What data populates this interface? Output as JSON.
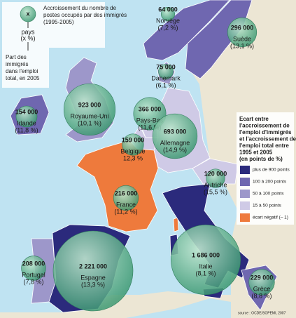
{
  "legend_top": {
    "symbol": "x",
    "title": [
      "Accroissement du nombre de",
      "postes occupés par des immigrés",
      "(1995-2005)"
    ],
    "country": "pays",
    "share": "(x %)",
    "note": [
      "Part des",
      "immigrés",
      "dans l'emploi",
      "total, en 2005"
    ]
  },
  "legend_right": {
    "title": [
      "Ecart entre",
      "l'accroissement de",
      "l'emploi d'immigrés",
      "et l'accroissement de",
      "l'emploi total entre",
      "1995 et 2005",
      "(en points de %)"
    ],
    "items": [
      {
        "label": "plus de 900 points",
        "color": "#2b2a7c"
      },
      {
        "label": "100 à 200 points",
        "color": "#6f67b0"
      },
      {
        "label": "50 à 100 points",
        "color": "#9d97ca"
      },
      {
        "label": "15 à 50 points",
        "color": "#cfcae6"
      },
      {
        "label": "écart négatif (– 1)",
        "color": "#ee7a3c"
      }
    ]
  },
  "countries": [
    {
      "name": "Norvège",
      "value": 64000,
      "label": "64 000",
      "share": "(7,2 %)",
      "color": "#6f67b0"
    },
    {
      "name": "Suède",
      "value": 296000,
      "label": "296 000",
      "share": "(13,1 %)",
      "color": "#6f67b0"
    },
    {
      "name": "Danemark",
      "value": 75000,
      "label": "75 000",
      "share": "(6,1 %)",
      "color": "#9d97ca"
    },
    {
      "name": "Irlande",
      "value": 154000,
      "label": "154 000",
      "share": "(11,8 %)",
      "color": "#6f67b0"
    },
    {
      "name": "Royaume-Uni",
      "value": 923000,
      "label": "923 000",
      "share": "(10,1 %)",
      "color": "#9d97ca"
    },
    {
      "name": "Pays-Bas",
      "value": 366000,
      "label": "366 000",
      "share": "(11,6 %)",
      "color": "#cfcae6"
    },
    {
      "name": "Belgique",
      "value": 159000,
      "label": "159 000",
      "share": "12,3 %",
      "color": "#cfcae6"
    },
    {
      "name": "Allemagne",
      "value": 693000,
      "label": "693 000",
      "share": "(14,9 %)",
      "color": "#cfcae6"
    },
    {
      "name": "France",
      "value": 216000,
      "label": "216 000",
      "share": "(11,2 %)",
      "color": "#ee7a3c"
    },
    {
      "name": "Autriche",
      "value": 120000,
      "label": "120 000",
      "share": "(15,5 %)",
      "color": "#cfcae6"
    },
    {
      "name": "Portugal",
      "value": 208000,
      "label": "208 000",
      "share": "(7,8 %)",
      "color": "#9d97ca"
    },
    {
      "name": "Espagne",
      "value": 2221000,
      "label": "2 221 000",
      "share": "(13,3 %)",
      "color": "#2b2a7c"
    },
    {
      "name": "Italie",
      "value": 1686000,
      "label": "1 686 000",
      "share": "(8,1 %)",
      "color": "#2b2a7c"
    },
    {
      "name": "Grèce",
      "value": 229000,
      "label": "229 000",
      "share": "(8,8 %)",
      "color": "#6f67b0"
    }
  ],
  "source": "source : OCDE/SOPEMI, 2007"
}
